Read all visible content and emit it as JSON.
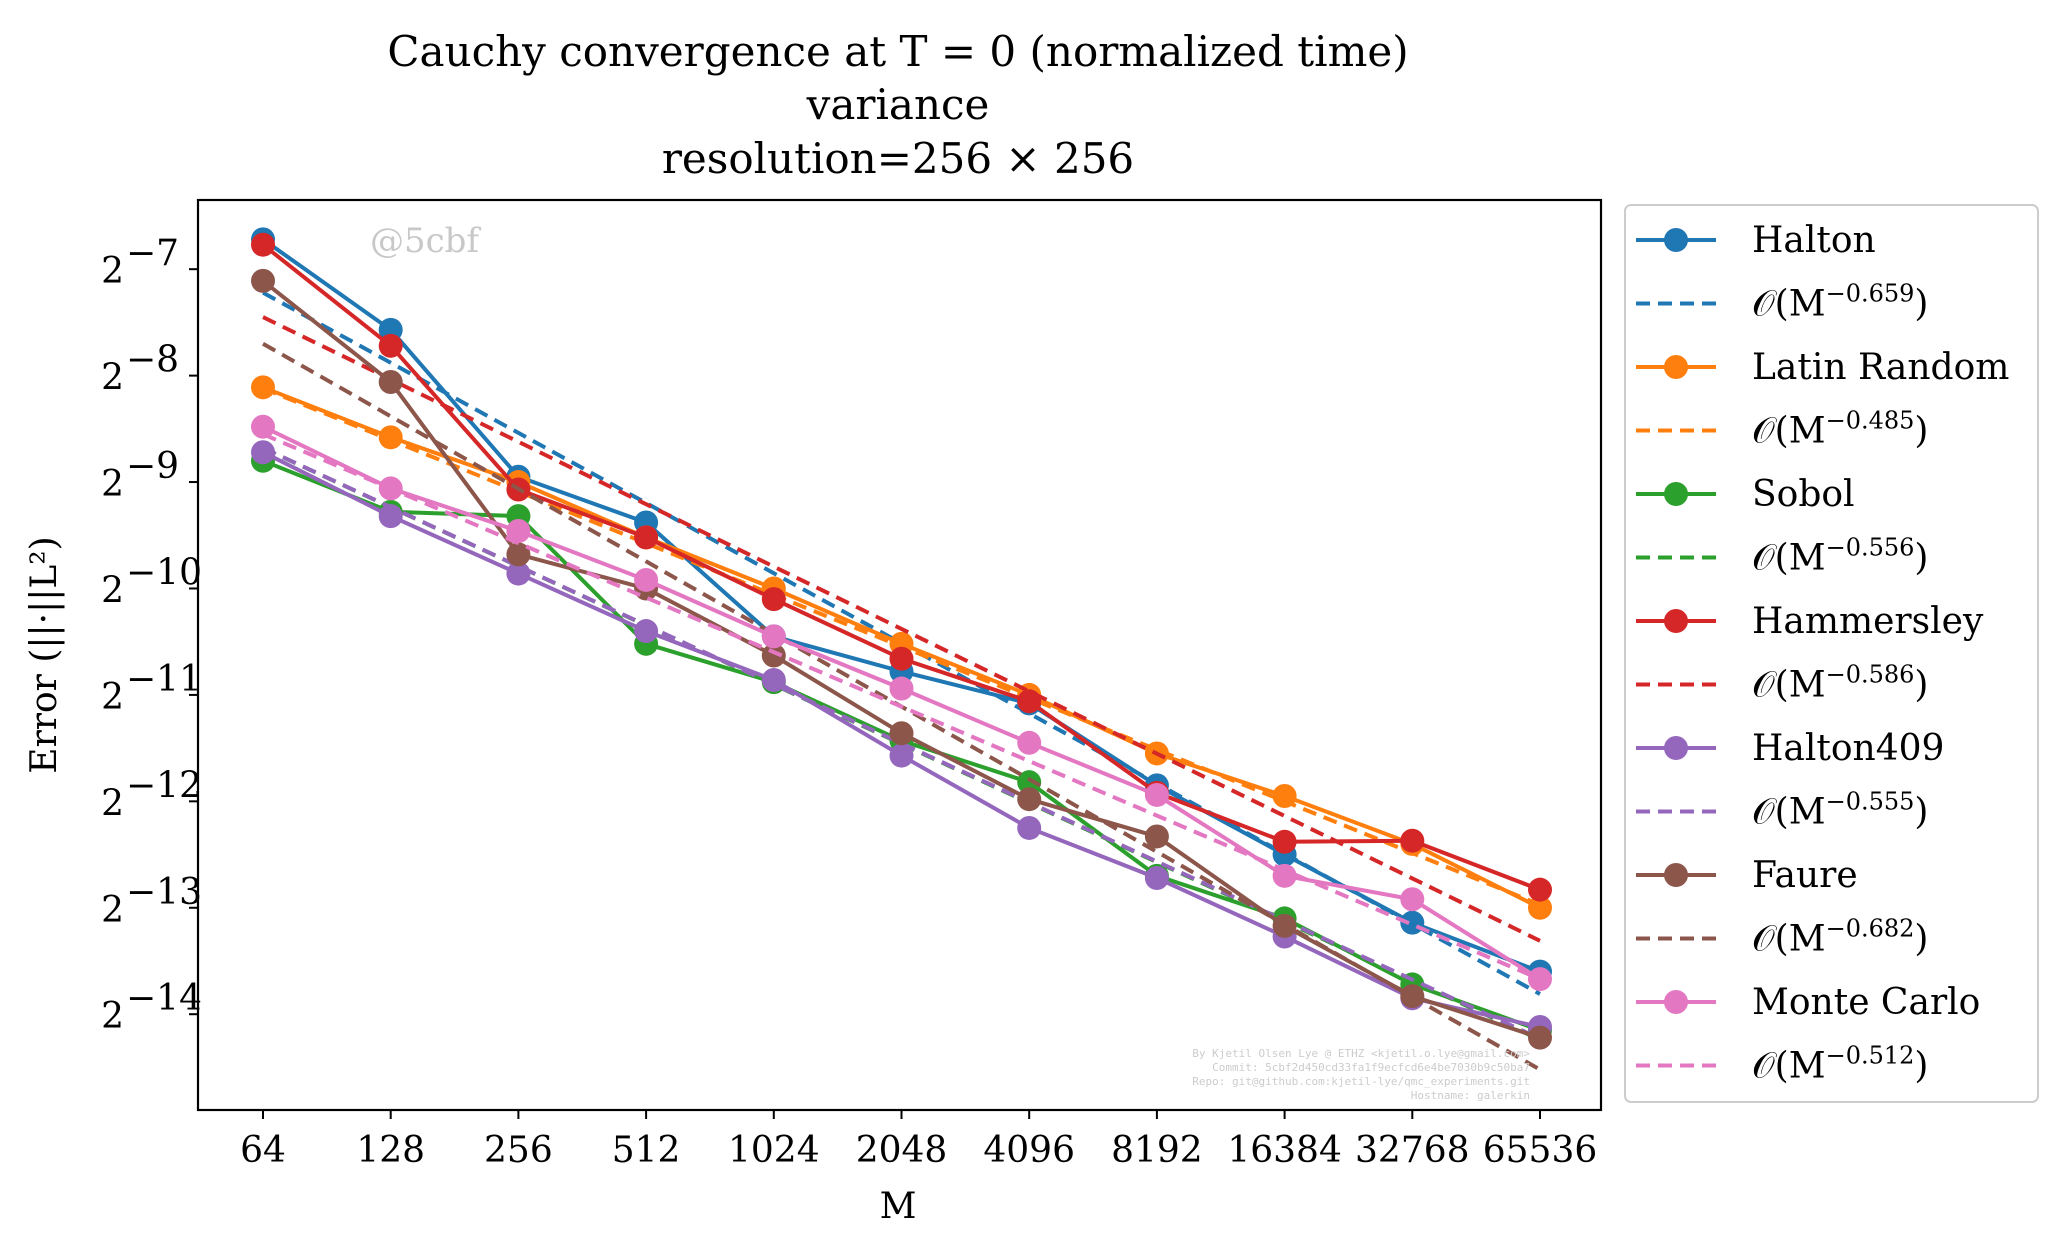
{
  "title_lines": [
    "Cauchy convergence at T = 0 (normalized time)",
    "variance",
    "resolution=256 × 256"
  ],
  "watermark": "@5cbf",
  "credits": [
    "By Kjetil Olsen Lye @ ETHZ <kjetil.o.lye@gmail.com>",
    "Commit: 5cbf2d450cd33fa1f9ecfcd6e4be7030b9c50ba7",
    "Repo: git@github.com:kjetil-lye/qmc_experiments.git",
    "Hostname: galerkin"
  ],
  "chart_data": {
    "type": "line",
    "xlabel": "M",
    "ylabel": "Error (||·||L²)",
    "x": [
      64,
      128,
      256,
      512,
      1024,
      2048,
      4096,
      8192,
      16384,
      32768,
      65536
    ],
    "x_tick_labels": [
      "64",
      "128",
      "256",
      "512",
      "1024",
      "2048",
      "4096",
      "8192",
      "16384",
      "32768",
      "65536"
    ],
    "x_scale": "log2",
    "y_scale": "log2",
    "ylim_log2": [
      -14.9,
      -6.35
    ],
    "y_ticks_log2": [
      -7,
      -8,
      -9,
      -10,
      -11,
      -12,
      -13,
      -14
    ],
    "y_tick_labels": [
      "2",
      "2",
      "2",
      "2",
      "2",
      "2",
      "2",
      "2"
    ],
    "y_tick_exponents": [
      "−7",
      "−8",
      "−9",
      "−10",
      "−11",
      "−12",
      "−13",
      "−14"
    ],
    "grid": false,
    "legend_position": "outside-right",
    "series": [
      {
        "name": "Halton",
        "color": "#1f77b4",
        "style": "solid",
        "marker": "circle",
        "log2_values": [
          -6.72,
          -7.57,
          -8.95,
          -9.38,
          -10.45,
          -10.78,
          -11.08,
          -11.85,
          -12.5,
          -13.14,
          -13.6
        ]
      },
      {
        "name": "O(M^−0.659)",
        "label_base": "𝒪(M",
        "label_exp": "−0.659",
        "label_tail": ")",
        "color": "#1f77b4",
        "style": "dashed",
        "log2_values": [
          -7.22,
          -7.879,
          -8.538,
          -9.197,
          -9.856,
          -10.515,
          -11.174,
          -11.833,
          -12.492,
          -13.151,
          -13.81
        ]
      },
      {
        "name": "Latin Random",
        "color": "#ff7f0e",
        "style": "solid",
        "marker": "circle",
        "log2_values": [
          -8.11,
          -8.58,
          -9.0,
          -9.52,
          -10.0,
          -10.52,
          -11.0,
          -11.55,
          -11.95,
          -12.4,
          -13.0
        ]
      },
      {
        "name": "O(M^−0.485)",
        "label_base": "𝒪(M",
        "label_exp": "−0.485",
        "label_tail": ")",
        "color": "#ff7f0e",
        "style": "dashed",
        "log2_values": [
          -8.12,
          -8.605,
          -9.09,
          -9.575,
          -10.06,
          -10.545,
          -11.03,
          -11.515,
          -12.0,
          -12.485,
          -12.97
        ]
      },
      {
        "name": "Sobol",
        "color": "#2ca02c",
        "style": "solid",
        "marker": "circle",
        "log2_values": [
          -8.8,
          -9.28,
          -9.32,
          -10.52,
          -10.88,
          -11.43,
          -11.82,
          -12.7,
          -13.1,
          -13.72,
          -14.15
        ]
      },
      {
        "name": "O(M^−0.556)",
        "label_base": "𝒪(M",
        "label_exp": "−0.556",
        "label_tail": ")",
        "color": "#2ca02c",
        "style": "dashed",
        "log2_values": [
          -8.68,
          -9.236,
          -9.792,
          -10.348,
          -10.904,
          -11.46,
          -12.016,
          -12.572,
          -13.128,
          -13.684,
          -14.24
        ]
      },
      {
        "name": "Hammersley",
        "color": "#d62728",
        "style": "solid",
        "marker": "circle",
        "log2_values": [
          -6.77,
          -7.72,
          -9.07,
          -9.52,
          -10.1,
          -10.66,
          -11.06,
          -11.92,
          -12.38,
          -12.37,
          -12.83
        ]
      },
      {
        "name": "O(M^−0.586)",
        "label_base": "𝒪(M",
        "label_exp": "−0.586",
        "label_tail": ")",
        "color": "#d62728",
        "style": "dashed",
        "log2_values": [
          -7.45,
          -8.036,
          -8.622,
          -9.208,
          -9.794,
          -10.38,
          -10.966,
          -11.552,
          -12.138,
          -12.724,
          -13.31
        ]
      },
      {
        "name": "Halton409",
        "color": "#9467bd",
        "style": "solid",
        "marker": "circle",
        "log2_values": [
          -8.72,
          -9.32,
          -9.86,
          -10.4,
          -10.86,
          -11.57,
          -12.25,
          -12.72,
          -13.27,
          -13.85,
          -14.12
        ]
      },
      {
        "name": "O(M^−0.555)",
        "label_base": "𝒪(M",
        "label_exp": "−0.555",
        "label_tail": ")",
        "color": "#9467bd",
        "style": "dashed",
        "log2_values": [
          -8.68,
          -9.235,
          -9.79,
          -10.345,
          -10.9,
          -11.455,
          -12.01,
          -12.565,
          -13.12,
          -13.675,
          -14.23
        ]
      },
      {
        "name": "Faure",
        "color": "#8c564b",
        "style": "solid",
        "marker": "circle",
        "log2_values": [
          -7.11,
          -8.06,
          -9.68,
          -10.0,
          -10.63,
          -11.36,
          -11.98,
          -12.33,
          -13.17,
          -13.83,
          -14.22
        ]
      },
      {
        "name": "O(M^−0.682)",
        "label_base": "𝒪(M",
        "label_exp": "−0.682",
        "label_tail": ")",
        "color": "#8c564b",
        "style": "dashed",
        "log2_values": [
          -7.7,
          -8.382,
          -9.064,
          -9.746,
          -10.428,
          -11.11,
          -11.792,
          -12.474,
          -13.156,
          -13.838,
          -14.52
        ]
      },
      {
        "name": "Monte Carlo",
        "color": "#e377c2",
        "style": "solid",
        "marker": "circle",
        "log2_values": [
          -8.48,
          -9.06,
          -9.46,
          -9.92,
          -10.45,
          -10.94,
          -11.45,
          -11.94,
          -12.7,
          -12.92,
          -13.67
        ]
      },
      {
        "name": "O(M^−0.512)",
        "label_base": "𝒪(M",
        "label_exp": "−0.512",
        "label_tail": ")",
        "color": "#e377c2",
        "style": "dashed",
        "log2_values": [
          -8.55,
          -9.062,
          -9.574,
          -10.086,
          -10.598,
          -11.11,
          -11.622,
          -12.134,
          -12.646,
          -13.158,
          -13.67
        ]
      }
    ]
  }
}
